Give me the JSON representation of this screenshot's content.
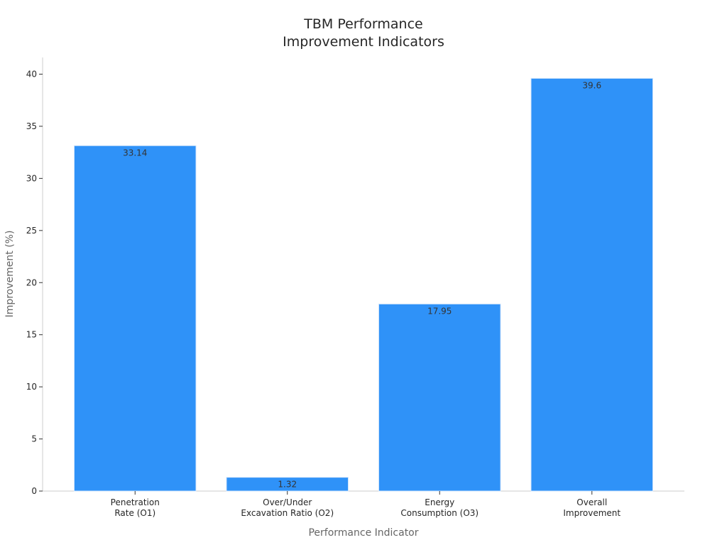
{
  "chart_data": {
    "type": "bar",
    "title": [
      "TBM Performance",
      "Improvement Indicators"
    ],
    "xlabel": "Performance Indicator",
    "ylabel": "Improvement (%)",
    "categories": [
      [
        "Penetration",
        "Rate (O1)"
      ],
      [
        "Over/Under",
        "Excavation Ratio (O2)"
      ],
      [
        "Energy",
        "Consumption (O3)"
      ],
      [
        "Overall",
        "Improvement"
      ]
    ],
    "values": [
      33.14,
      1.32,
      17.95,
      39.6
    ],
    "value_labels": [
      "33.14",
      "1.32",
      "17.95",
      "39.6"
    ],
    "ylim": [
      0,
      41.6
    ],
    "yticks": [
      0,
      5,
      10,
      15,
      20,
      25,
      30,
      35,
      40
    ],
    "ytick_labels": [
      "0",
      "5",
      "10",
      "15",
      "20",
      "25",
      "30",
      "35",
      "40"
    ],
    "grid": false,
    "legend": "none",
    "bar_color": "#2f92f8",
    "bar_edge_color": "#d8e8fb",
    "axis_color": "#cccccc"
  }
}
